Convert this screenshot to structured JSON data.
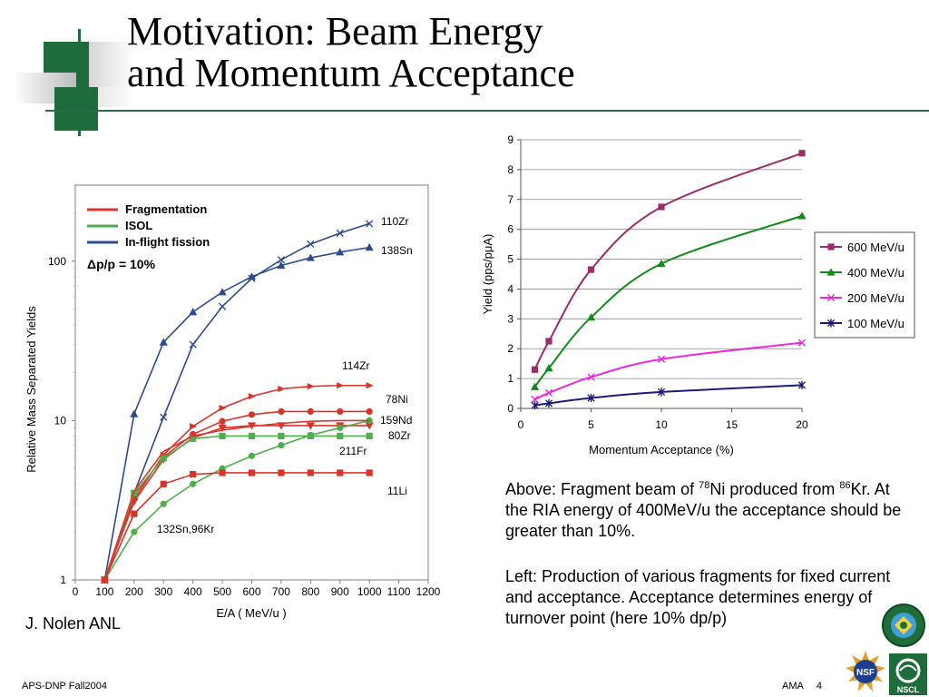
{
  "slide": {
    "title_line1": "Motivation: Beam Energy",
    "title_line2": "and Momentum Acceptance",
    "above_text": {
      "prefix": "Above:  Fragment beam of ",
      "sup1": "78",
      "mid": "Ni produced from ",
      "sup2": "86",
      "suffix": "Kr.  At the RIA energy of 400MeV/u the acceptance should be greater than 10%."
    },
    "left_text": "Left:  Production of various fragments for fixed current and acceptance.  Acceptance determines energy of turnover point (here 10% dp/p)",
    "credit": "J. Nolen ANL",
    "footer_left": "APS-DNP Fall2004",
    "footer_author": "AMA",
    "footer_page": "4",
    "logo_nsf": "NSF",
    "logo_nscl": "NSCL",
    "accent_green": "#1e6b3c",
    "logo_icons": [
      "doe-seal-icon",
      "nsf-logo-icon",
      "nscl-logo-icon"
    ]
  },
  "chart_data": [
    {
      "type": "line",
      "ylabel": "Relative Mass Separated Yields",
      "xlabel": "E/A  ( MeV/u )",
      "xlim": [
        0,
        1200
      ],
      "ylim": [
        1,
        300
      ],
      "yscale": "log",
      "xticks": [
        0,
        100,
        200,
        300,
        400,
        500,
        600,
        700,
        800,
        900,
        1000,
        1100,
        1200
      ],
      "yticks": [
        1,
        10,
        100
      ],
      "grid": false,
      "legend_position": "top-left",
      "legend": [
        {
          "label": "Fragmentation",
          "color": "#d8342a"
        },
        {
          "label": "ISOL",
          "color": "#4daf4a"
        },
        {
          "label": "In-flight fission",
          "color": "#2e4a8f"
        }
      ],
      "annotation": "Δp/p = 10%",
      "series": [
        {
          "label": "110Zr",
          "group": "In-flight fission",
          "color": "#2e4a8f",
          "marker": "cross",
          "x": [
            100,
            200,
            300,
            400,
            500,
            600,
            700,
            800,
            900,
            1000
          ],
          "y": [
            1,
            3.5,
            10.5,
            30,
            52,
            78,
            102,
            128,
            150,
            172
          ]
        },
        {
          "label": "138Sn",
          "group": "In-flight fission",
          "color": "#2e4a8f",
          "marker": "triangle",
          "x": [
            100,
            200,
            300,
            400,
            500,
            600,
            700,
            800,
            900,
            1000
          ],
          "y": [
            1,
            11,
            31,
            48,
            64,
            80,
            94,
            105,
            114,
            122
          ]
        },
        {
          "label": "114Zr",
          "group": "Fragmentation",
          "color": "#d8342a",
          "marker": "triangle-right",
          "x": [
            100,
            200,
            300,
            400,
            500,
            600,
            700,
            800,
            900,
            1000
          ],
          "y": [
            1,
            3.2,
            6.1,
            9.2,
            12,
            14.2,
            15.8,
            16.4,
            16.6,
            16.6
          ]
        },
        {
          "label": "78Ni",
          "group": "Fragmentation",
          "color": "#d8342a",
          "marker": "circle",
          "x": [
            100,
            200,
            300,
            400,
            500,
            600,
            700,
            800,
            900,
            1000
          ],
          "y": [
            1,
            3.4,
            5.9,
            8.2,
            9.9,
            10.9,
            11.4,
            11.4,
            11.4,
            11.4
          ]
        },
        {
          "label": "159Nd",
          "group": "Fragmentation",
          "color": "#d8342a",
          "marker": "triangle-down",
          "x": [
            100,
            200,
            300,
            400,
            500,
            600,
            700,
            800,
            900,
            1000
          ],
          "y": [
            1,
            3.1,
            5.7,
            7.8,
            9.0,
            9.3,
            9.3,
            9.3,
            9.3,
            9.3
          ]
        },
        {
          "label": "80Zr",
          "group": "ISOL",
          "color": "#4daf4a",
          "marker": "square",
          "x": [
            100,
            200,
            300,
            400,
            500,
            600,
            700,
            800,
            900,
            1000
          ],
          "y": [
            1,
            3.5,
            5.8,
            7.7,
            8.0,
            8.0,
            8.0,
            8.0,
            8.0,
            8.0
          ]
        },
        {
          "label": "211Fr",
          "group": "ISOL",
          "color": "#4daf4a",
          "marker": "circle",
          "x": [
            100,
            200,
            300,
            400,
            500,
            600,
            700,
            800,
            900,
            1000
          ],
          "y": [
            1,
            2.0,
            3.0,
            4.0,
            5.0,
            6.0,
            7.0,
            8.1,
            9.0,
            10.0
          ]
        },
        {
          "label": "11Li",
          "group": "Fragmentation",
          "color": "#d8342a",
          "marker": "square",
          "x": [
            100,
            200,
            300,
            400,
            500,
            600,
            700,
            800,
            900,
            1000
          ],
          "y": [
            1,
            2.6,
            4.0,
            4.6,
            4.7,
            4.7,
            4.7,
            4.7,
            4.7,
            4.7
          ]
        },
        {
          "label": "132Sn,96Kr",
          "group": "Fragmentation",
          "color": "#d8342a",
          "marker": "none",
          "x": [
            100,
            200,
            300,
            400,
            500,
            600,
            700,
            800,
            900,
            1000
          ],
          "y": [
            1,
            3.6,
            6.4,
            8.0,
            8.7,
            9.2,
            9.6,
            9.9,
            10.0,
            10.0
          ]
        }
      ]
    },
    {
      "type": "line",
      "xlabel": "Momentum Acceptance (%)",
      "ylabel": "Yield (pps/pμA)",
      "xlim": [
        0,
        20
      ],
      "ylim": [
        0,
        9
      ],
      "xticks": [
        0,
        5,
        10,
        15,
        20
      ],
      "yticks": [
        0,
        1,
        2,
        3,
        4,
        5,
        6,
        7,
        8,
        9
      ],
      "grid": true,
      "legend_position": "right",
      "series": [
        {
          "name": "600 MeV/u",
          "color": "#9b2d6a",
          "marker": "square",
          "x": [
            1,
            2,
            5,
            10,
            20
          ],
          "y": [
            1.3,
            2.25,
            4.65,
            6.75,
            8.55
          ]
        },
        {
          "name": "400 MeV/u",
          "color": "#118a1a",
          "marker": "triangle",
          "x": [
            1,
            2,
            5,
            10,
            20
          ],
          "y": [
            0.72,
            1.35,
            3.05,
            4.85,
            6.45
          ]
        },
        {
          "name": "200 MeV/u",
          "color": "#ee28d9",
          "marker": "x",
          "x": [
            1,
            2,
            5,
            10,
            20
          ],
          "y": [
            0.3,
            0.52,
            1.05,
            1.65,
            2.2
          ]
        },
        {
          "name": "100 MeV/u",
          "color": "#1c1b7a",
          "marker": "star",
          "x": [
            1,
            2,
            5,
            10,
            20
          ],
          "y": [
            0.1,
            0.17,
            0.35,
            0.55,
            0.78
          ]
        }
      ]
    }
  ]
}
